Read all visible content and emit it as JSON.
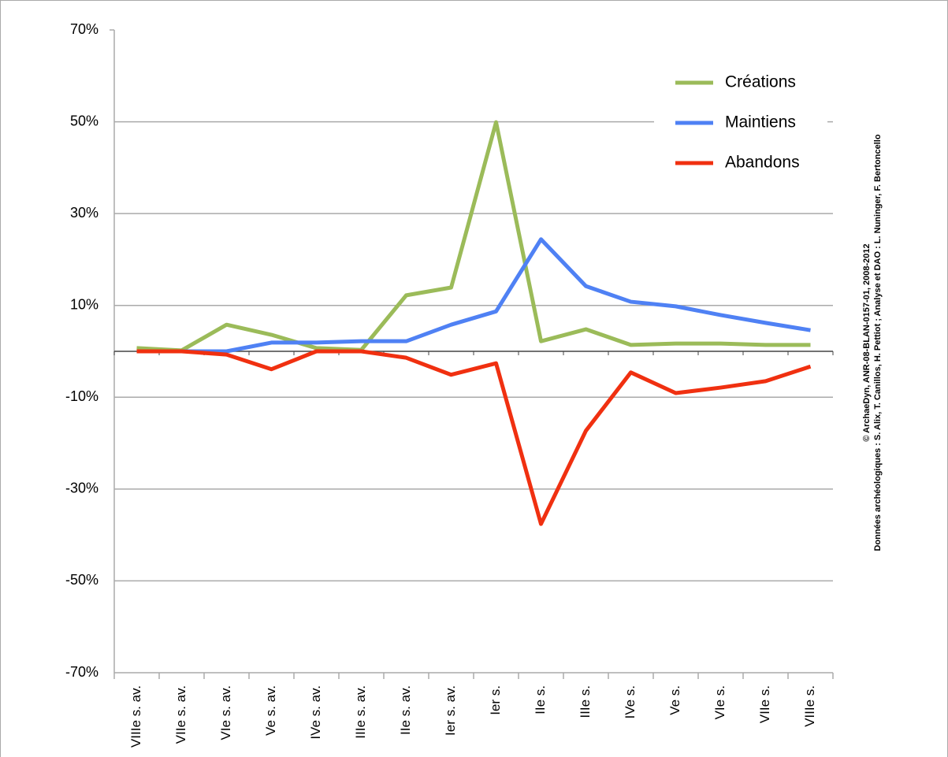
{
  "chart_data": {
    "type": "line",
    "categories": [
      "VIIIe s. av.",
      "VIIe s. av.",
      "VIe s. av.",
      "Ve s. av.",
      "IVe s. av.",
      "IIIe s. av.",
      "IIe s. av.",
      "Ier s. av.",
      "Ier s.",
      "IIe s.",
      "IIIe s.",
      "IVe s.",
      "Ve s.",
      "VIe s.",
      "VIIe s.",
      "VIIIe s."
    ],
    "series": [
      {
        "name": "Créations",
        "color": "#9bbb59",
        "values": [
          0.7,
          0.2,
          5.8,
          3.6,
          0.7,
          0.3,
          12.2,
          13.9,
          49.9,
          2.2,
          4.8,
          1.4,
          1.7,
          1.7,
          1.4,
          1.4
        ]
      },
      {
        "name": "Maintiens",
        "color": "#4f81f4",
        "values": [
          0,
          0,
          0,
          1.9,
          1.9,
          2.2,
          2.2,
          5.8,
          8.7,
          24.4,
          14.2,
          10.8,
          9.8,
          7.9,
          6.2,
          4.6
        ]
      },
      {
        "name": "Abandons",
        "color": "#f03010",
        "values": [
          0,
          0,
          -0.7,
          -3.9,
          0,
          0,
          -1.4,
          -5.1,
          -2.6,
          -37.6,
          -17.3,
          -4.6,
          -9.1,
          -7.9,
          -6.5,
          -3.3
        ]
      }
    ],
    "ylim": [
      -70,
      70
    ],
    "yticks": [
      {
        "value": 70,
        "label": "70%"
      },
      {
        "value": 50,
        "label": "50%"
      },
      {
        "value": 30,
        "label": "30%"
      },
      {
        "value": 10,
        "label": "10%"
      },
      {
        "value": -10,
        "label": "-10%"
      },
      {
        "value": -30,
        "label": "-30%"
      },
      {
        "value": -50,
        "label": "-50%"
      },
      {
        "value": -70,
        "label": "-70%"
      }
    ],
    "grid": true,
    "legend": "upper right",
    "annotations": [
      "© ArchaeDyn, ANR-08-BLAN-0157-01, 2008-2012",
      "Données archéologiques : S. Alix, T. Canillos, H. Pettiot ; Analyse et DAO : L. Nuninger, F. Bertoncello"
    ]
  }
}
